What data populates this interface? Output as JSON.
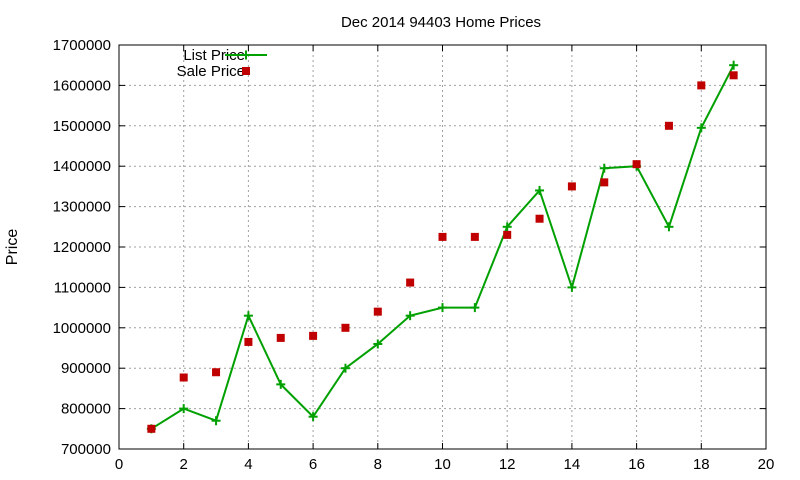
{
  "chart_data": {
    "type": "line",
    "title": "Dec 2014 94403 Home Prices",
    "xlabel": "",
    "ylabel": "Price",
    "xlim": [
      0,
      20
    ],
    "ylim": [
      700000,
      1700000
    ],
    "xticks": [
      "0",
      "2",
      "4",
      "6",
      "8",
      "10",
      "12",
      "14",
      "16",
      "18",
      "20"
    ],
    "yticks": [
      "700000",
      "800000",
      "900000",
      "1000000",
      "1100000",
      "1200000",
      "1300000",
      "1400000",
      "1500000",
      "1600000",
      "1700000"
    ],
    "grid": true,
    "legend_position": "top-left",
    "x": [
      1,
      2,
      3,
      4,
      5,
      6,
      7,
      8,
      9,
      10,
      11,
      12,
      13,
      14,
      15,
      16,
      17,
      18,
      19
    ],
    "series": [
      {
        "name": "List Price",
        "style": "line-with-plus-markers",
        "color": "#00a000",
        "values": [
          750000,
          800000,
          770000,
          1030000,
          860000,
          780000,
          900000,
          960000,
          1030000,
          1050000,
          1050000,
          1250000,
          1340000,
          1100000,
          1395000,
          1400000,
          1250000,
          1495000,
          1650000
        ]
      },
      {
        "name": "Sale Price",
        "style": "square-markers",
        "color": "#c00000",
        "values": [
          750000,
          877000,
          890000,
          965000,
          975000,
          980000,
          1000000,
          1040000,
          1112000,
          1225000,
          1225000,
          1230000,
          1270000,
          1350000,
          1360000,
          1405000,
          1500000,
          1600000,
          1625000
        ]
      }
    ]
  }
}
